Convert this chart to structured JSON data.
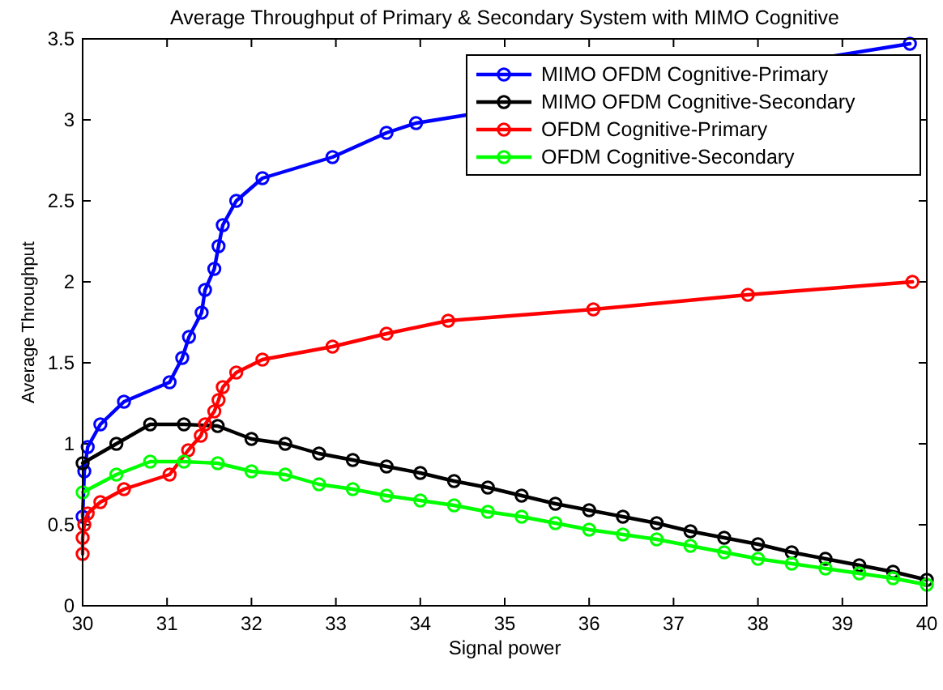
{
  "chart_data": {
    "type": "line",
    "title": "Average Throughput of Primary  & Secondary System with MIMO Cognitive",
    "xlabel": "Signal power",
    "ylabel": "Average Throughput",
    "xlim": [
      30,
      40
    ],
    "xticks": [
      30,
      31,
      32,
      33,
      34,
      35,
      36,
      37,
      38,
      39,
      40
    ],
    "ylim": [
      0,
      3.5
    ],
    "yticks": [
      0,
      0.5,
      1,
      1.5,
      2,
      2.5,
      3,
      3.5
    ],
    "grid": false,
    "legend": "top right",
    "marker": "circle",
    "line_style": "solid",
    "series": [
      {
        "name": "MIMO OFDM Cognitive-Primary",
        "color": "#0000ff",
        "x": [
          30,
          30.02,
          30.06,
          30.21,
          30.49,
          31.03,
          31.18,
          31.26,
          31.41,
          31.45,
          31.56,
          31.61,
          31.66,
          31.82,
          32.13,
          32.96,
          33.6,
          33.95,
          39.8
        ],
        "values": [
          0.55,
          0.83,
          0.98,
          1.12,
          1.26,
          1.38,
          1.53,
          1.66,
          1.81,
          1.95,
          2.08,
          2.22,
          2.35,
          2.5,
          2.64,
          2.77,
          2.92,
          2.98,
          3.47
        ]
      },
      {
        "name": "MIMO OFDM Cognitive-Secondary",
        "color": "#000000",
        "x": [
          30,
          30.4,
          30.8,
          31.2,
          31.6,
          32,
          32.4,
          32.8,
          33.2,
          33.6,
          34,
          34.4,
          34.8,
          35.2,
          35.6,
          36,
          36.4,
          36.8,
          37.2,
          37.6,
          38,
          38.4,
          38.8,
          39.2,
          39.6,
          40
        ],
        "values": [
          0.88,
          1.0,
          1.12,
          1.12,
          1.11,
          1.03,
          1.0,
          0.94,
          0.9,
          0.86,
          0.82,
          0.77,
          0.73,
          0.68,
          0.63,
          0.59,
          0.55,
          0.51,
          0.46,
          0.42,
          0.38,
          0.33,
          0.29,
          0.25,
          0.21,
          0.16
        ]
      },
      {
        "name": "OFDM Cognitive-Primary",
        "color": "#ff0000",
        "x": [
          30,
          30,
          30.02,
          30.06,
          30.21,
          30.49,
          31.03,
          31.25,
          31.4,
          31.45,
          31.56,
          31.61,
          31.66,
          31.82,
          32.13,
          32.96,
          33.6,
          34.33,
          36.05,
          37.88,
          39.83
        ],
        "values": [
          0.32,
          0.42,
          0.5,
          0.57,
          0.64,
          0.72,
          0.81,
          0.96,
          1.05,
          1.12,
          1.2,
          1.27,
          1.35,
          1.44,
          1.52,
          1.6,
          1.68,
          1.76,
          1.83,
          1.92,
          2.0
        ]
      },
      {
        "name": "OFDM Cognitive-Secondary",
        "color": "#00ff00",
        "x": [
          30,
          30.4,
          30.8,
          31.2,
          31.6,
          32,
          32.4,
          32.8,
          33.2,
          33.6,
          34,
          34.4,
          34.8,
          35.2,
          35.6,
          36,
          36.4,
          36.8,
          37.2,
          37.6,
          38,
          38.4,
          38.8,
          39.2,
          39.6,
          40
        ],
        "values": [
          0.7,
          0.81,
          0.89,
          0.89,
          0.88,
          0.83,
          0.81,
          0.75,
          0.72,
          0.68,
          0.65,
          0.62,
          0.58,
          0.55,
          0.51,
          0.47,
          0.44,
          0.41,
          0.37,
          0.33,
          0.29,
          0.26,
          0.23,
          0.2,
          0.17,
          0.13
        ]
      }
    ]
  }
}
